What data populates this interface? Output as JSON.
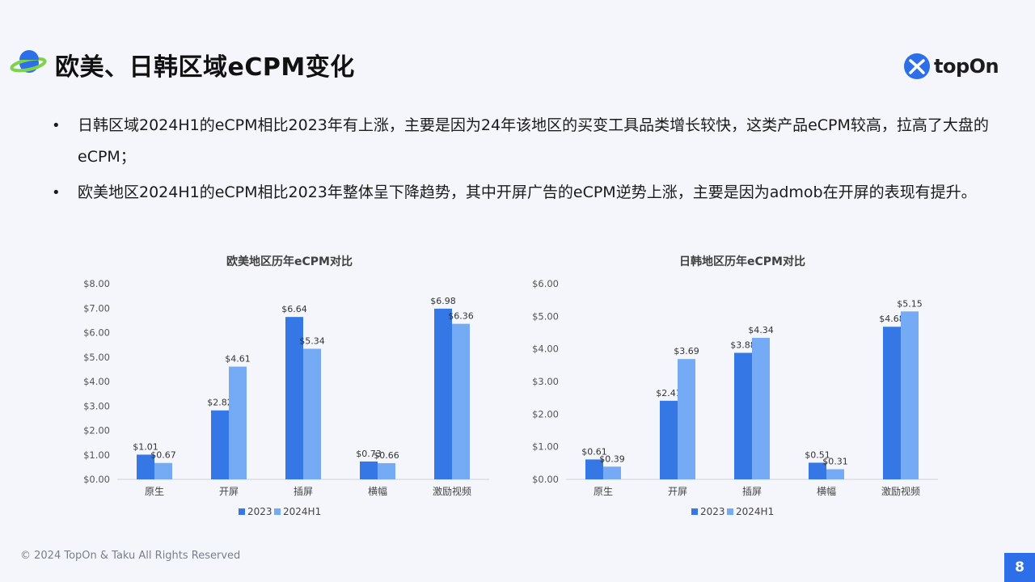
{
  "header": {
    "title": "欧美、日韩区域eCPM变化",
    "logo_text": "topOn",
    "icon": "planet-icon",
    "logo_icon": "topon-logo-icon"
  },
  "bullets": [
    "日韩区域2024H1的eCPM相比2023年有上涨，主要是因为24年该地区的买变工具品类增长较快，这类产品eCPM较高，拉高了大盘的eCPM；",
    "欧美地区2024H1的eCPM相比2023年整体呈下降趋势，其中开屏广告的eCPM逆势上涨，主要是因为admob在开屏的表现有提升。"
  ],
  "colors": {
    "series_2023": "#3578e5",
    "series_2024": "#75aaf5",
    "page_badge": "#2d6fe8"
  },
  "chart_data": [
    {
      "type": "bar",
      "title": "欧美地区历年eCPM对比",
      "categories": [
        "原生",
        "开屏",
        "插屏",
        "横幅",
        "激励视频"
      ],
      "series": [
        {
          "name": "2023",
          "values": [
            1.01,
            2.82,
            6.64,
            0.73,
            6.98
          ],
          "labels": [
            "$1.01",
            "$2.82",
            "$6.64",
            "$0.73",
            "$6.98"
          ]
        },
        {
          "name": "2024H1",
          "values": [
            0.67,
            4.61,
            5.34,
            0.66,
            6.36
          ],
          "labels": [
            "$0.67",
            "$4.61",
            "$5.34",
            "$0.66",
            "$6.36"
          ]
        }
      ],
      "ylim": [
        0,
        8
      ],
      "yticks": [
        "$0.00",
        "$1.00",
        "$2.00",
        "$3.00",
        "$4.00",
        "$5.00",
        "$6.00",
        "$7.00",
        "$8.00"
      ],
      "legend": "bottom"
    },
    {
      "type": "bar",
      "title": "日韩地区历年eCPM对比",
      "categories": [
        "原生",
        "开屏",
        "插屏",
        "横幅",
        "激励视频"
      ],
      "series": [
        {
          "name": "2023",
          "values": [
            0.61,
            2.41,
            3.88,
            0.51,
            4.68
          ],
          "labels": [
            "$0.61",
            "$2.41",
            "$3.88",
            "$0.51",
            "$4.68"
          ]
        },
        {
          "name": "2024H1",
          "values": [
            0.39,
            3.69,
            4.34,
            0.31,
            5.15
          ],
          "labels": [
            "$0.39",
            "$3.69",
            "$4.34",
            "$0.31",
            "$5.15"
          ]
        }
      ],
      "ylim": [
        0,
        6
      ],
      "yticks": [
        "$0.00",
        "$1.00",
        "$2.00",
        "$3.00",
        "$4.00",
        "$5.00",
        "$6.00"
      ],
      "legend": "bottom"
    }
  ],
  "footer": {
    "copyright": "© 2024 TopOn & Taku All Rights Reserved",
    "page": "8"
  }
}
